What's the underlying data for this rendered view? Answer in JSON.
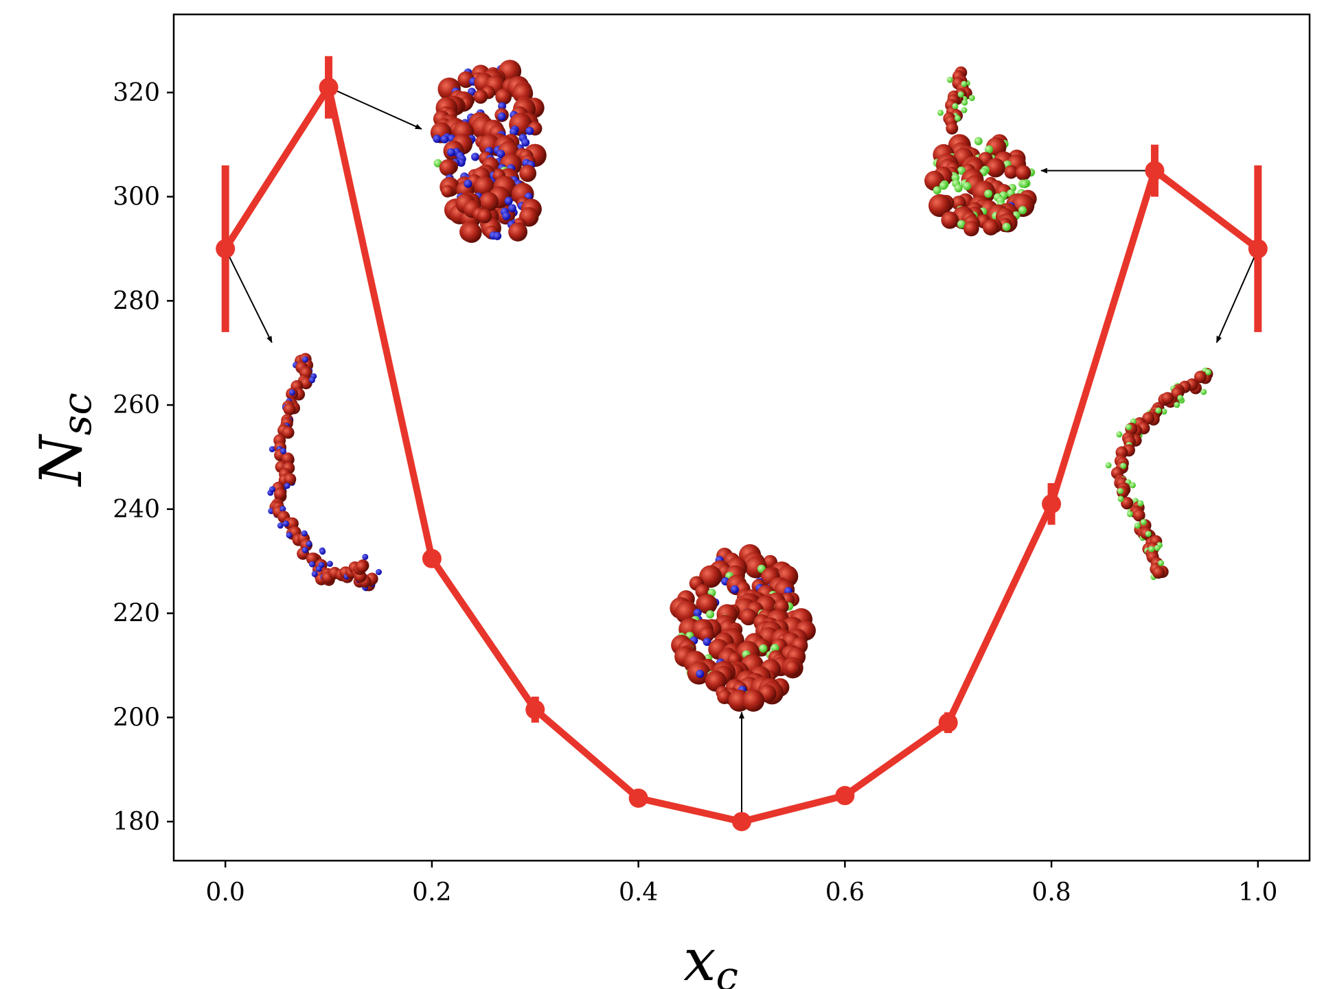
{
  "chart_data": {
    "type": "line",
    "xlabel": "x",
    "xlabel_sub": "c",
    "ylabel": "N",
    "ylabel_sub": "sc",
    "xlim": [
      -0.05,
      1.05
    ],
    "ylim": [
      172.5,
      335
    ],
    "xticks": [
      0.0,
      0.2,
      0.4,
      0.6,
      0.8,
      1.0
    ],
    "xtick_labels": [
      "0.0",
      "0.2",
      "0.4",
      "0.6",
      "0.8",
      "1.0"
    ],
    "yticks": [
      180,
      200,
      220,
      240,
      260,
      280,
      300,
      320
    ],
    "ytick_labels": [
      "180",
      "200",
      "220",
      "240",
      "260",
      "280",
      "300",
      "320"
    ],
    "grid": false,
    "series": [
      {
        "color": "#e8352b",
        "x": [
          0.0,
          0.1,
          0.2,
          0.3,
          0.4,
          0.5,
          0.6,
          0.7,
          0.8,
          0.9,
          1.0
        ],
        "y": [
          290,
          321,
          230.5,
          201.5,
          184.5,
          180,
          185,
          199,
          241,
          305,
          290
        ],
        "yerr": [
          16,
          6,
          1.5,
          2.5,
          1,
          1,
          1,
          2,
          4,
          5,
          16
        ]
      }
    ],
    "annotations": [
      {
        "type": "arrow",
        "from": [
          0.0,
          290
        ],
        "to": [
          0.045,
          272
        ],
        "inset": "extended-chain-blue"
      },
      {
        "type": "arrow",
        "from": [
          0.1,
          321
        ],
        "to": [
          0.19,
          313
        ],
        "inset": "compact-blob-blue"
      },
      {
        "type": "arrow",
        "from": [
          0.5,
          180
        ],
        "to": [
          0.5,
          201
        ],
        "inset": "globule-mixed"
      },
      {
        "type": "arrow",
        "from": [
          0.9,
          305
        ],
        "to": [
          0.79,
          305
        ],
        "inset": "compact-blob-green"
      },
      {
        "type": "arrow",
        "from": [
          1.0,
          290
        ],
        "to": [
          0.96,
          272
        ],
        "inset": "extended-chain-green"
      }
    ],
    "colors": {
      "bead": "#b02418",
      "blue_bead": "#1010c8",
      "green_bead": "#5ee03a"
    }
  }
}
